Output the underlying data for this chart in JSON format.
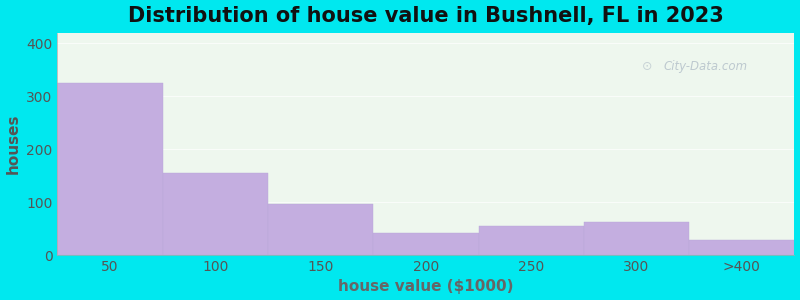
{
  "title": "Distribution of house value in Bushnell, FL in 2023",
  "xlabel": "house value ($1000)",
  "ylabel": "houses",
  "bar_labels": [
    "50",
    "100",
    "150",
    "200",
    "250",
    "300",
    ">400"
  ],
  "bar_values": [
    325,
    155,
    97,
    42,
    55,
    62,
    28
  ],
  "bar_color": "#c4aee0",
  "bar_edgecolor": "#b8a8d8",
  "ylim": [
    0,
    420
  ],
  "yticks": [
    0,
    100,
    200,
    300,
    400
  ],
  "background_outer": "#00e8ef",
  "background_inner": "#eef7ee",
  "title_fontsize": 15,
  "axis_label_fontsize": 11,
  "tick_fontsize": 10,
  "tick_color": "#555555",
  "xlabel_color": "#666666",
  "ylabel_color": "#555555",
  "title_color": "#111111",
  "watermark_text": "City-Data.com",
  "watermark_color": "#b8c4cc"
}
